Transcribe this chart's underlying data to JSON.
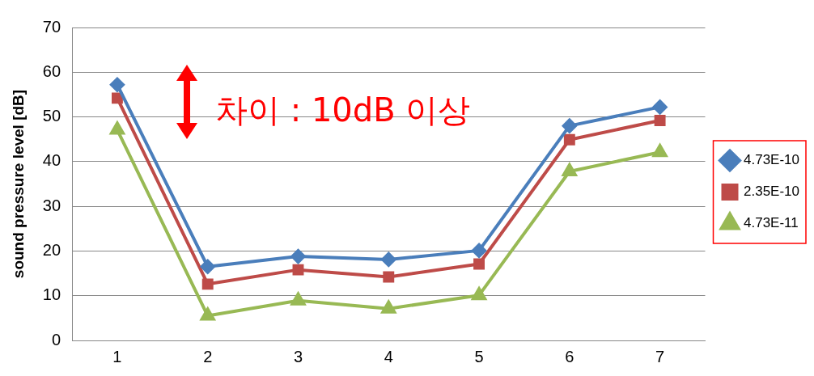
{
  "chart_data": {
    "type": "line",
    "ylabel": "sound pressure level [dB]",
    "categories": [
      "1",
      "2",
      "3",
      "4",
      "5",
      "6",
      "7"
    ],
    "series": [
      {
        "name": "4.73E-10",
        "color": "#4a7ebb",
        "marker": "diamond",
        "values": [
          57.2,
          16.5,
          18.8,
          18.1,
          20.1,
          48,
          52.2
        ]
      },
      {
        "name": "2.35E-10",
        "color": "#be4b48",
        "marker": "square",
        "values": [
          54.2,
          12.6,
          15.8,
          14.2,
          17.1,
          44.9,
          49.2
        ]
      },
      {
        "name": "4.73E-11",
        "color": "#98b954",
        "marker": "triangle",
        "values": [
          47.1,
          5.5,
          8.9,
          7.1,
          10.1,
          37.8,
          42.1
        ]
      }
    ],
    "ylim": [
      0,
      70
    ],
    "yticks": [
      0,
      10,
      20,
      30,
      40,
      50,
      60,
      70
    ],
    "grid": "y",
    "legend": "right",
    "line_style": "solid",
    "annotations": [
      "차이 : 10dB 이상"
    ]
  }
}
